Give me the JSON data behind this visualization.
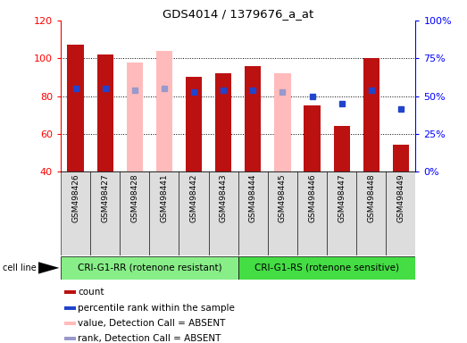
{
  "title": "GDS4014 / 1379676_a_at",
  "samples": [
    "GSM498426",
    "GSM498427",
    "GSM498428",
    "GSM498441",
    "GSM498442",
    "GSM498443",
    "GSM498444",
    "GSM498445",
    "GSM498446",
    "GSM498447",
    "GSM498448",
    "GSM498449"
  ],
  "count_values": [
    107,
    102,
    null,
    null,
    90,
    92,
    96,
    null,
    75,
    64,
    100,
    54
  ],
  "count_absent_values": [
    null,
    null,
    98,
    104,
    null,
    null,
    null,
    92,
    null,
    null,
    null,
    null
  ],
  "rank_values": [
    84,
    84,
    null,
    null,
    82,
    83,
    83,
    null,
    80,
    76,
    83,
    73
  ],
  "rank_absent_values": [
    null,
    null,
    83,
    84,
    null,
    null,
    null,
    82,
    null,
    null,
    null,
    null
  ],
  "group1_label": "CRI-G1-RR (rotenone resistant)",
  "group2_label": "CRI-G1-RS (rotenone sensitive)",
  "group1_count": 6,
  "group2_count": 6,
  "cell_line_label": "cell line",
  "ylim": [
    40,
    120
  ],
  "yticks": [
    40,
    60,
    80,
    100,
    120
  ],
  "y2ticks_pos": [
    40,
    60,
    80,
    100,
    120
  ],
  "y2ticks_labels": [
    "0%",
    "25%",
    "50%",
    "75%",
    "100%"
  ],
  "bar_color_present": "#bb1111",
  "bar_color_absent": "#ffbbbb",
  "rank_color_present": "#2244cc",
  "rank_color_absent": "#9999cc",
  "bar_width": 0.55,
  "group1_color": "#88ee88",
  "group2_color": "#44dd44",
  "sample_box_color": "#dddddd",
  "legend_items": [
    {
      "label": "count",
      "color": "#bb1111"
    },
    {
      "label": "percentile rank within the sample",
      "color": "#2244cc"
    },
    {
      "label": "value, Detection Call = ABSENT",
      "color": "#ffbbbb"
    },
    {
      "label": "rank, Detection Call = ABSENT",
      "color": "#9999cc"
    }
  ]
}
